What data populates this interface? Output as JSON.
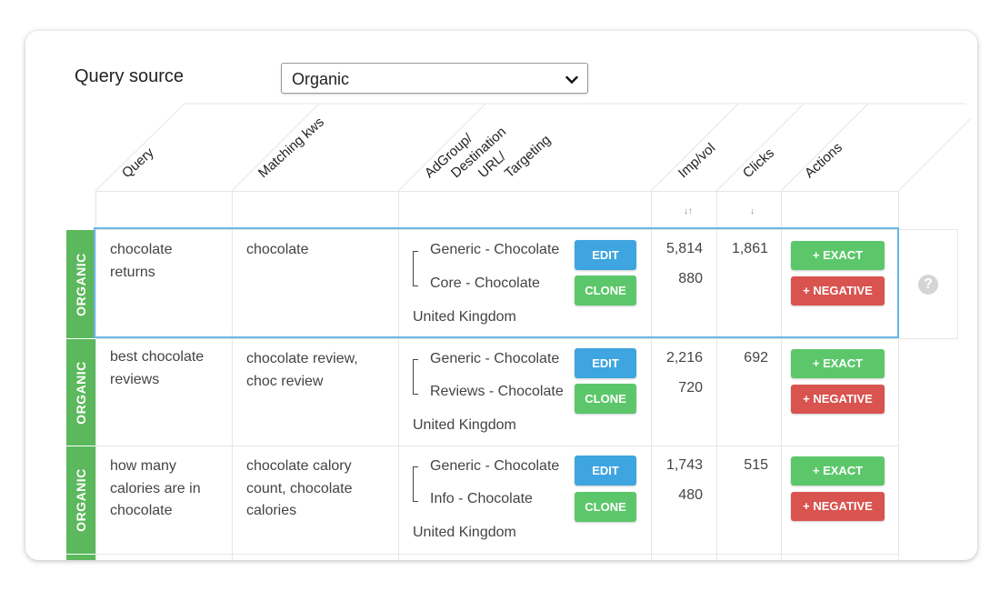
{
  "query_source": {
    "label": "Query source",
    "selected": "Organic"
  },
  "columns": {
    "query": "Query",
    "matching_kws": "Matching kws",
    "adgroup_l1": "AdGroup/",
    "adgroup_l2": "Destination",
    "adgroup_l3": "URL/",
    "adgroup_l4": "Targeting",
    "imp_vol": "Imp/vol",
    "clicks": "Clicks",
    "actions": "Actions"
  },
  "sort_icons": {
    "imp_vol": "↓↑",
    "clicks": "↓"
  },
  "buttons": {
    "edit": "EDIT",
    "clone": "CLONE",
    "exact": "+ EXACT",
    "negative": "+ NEGATIVE"
  },
  "rows": [
    {
      "source": "ORGANIC",
      "query": [
        "chocolate",
        "returns"
      ],
      "matching_kws": [
        "chocolate"
      ],
      "adgroup_generic": "Generic - Chocolate",
      "adgroup_specific": "Core - Chocolate",
      "targeting": "United Kingdom",
      "imp": "5,814",
      "vol": "880",
      "clicks": "1,861"
    },
    {
      "source": "ORGANIC",
      "query": [
        "best chocolate",
        "reviews"
      ],
      "matching_kws": [
        "chocolate review,",
        "choc review"
      ],
      "adgroup_generic": "Generic - Chocolate",
      "adgroup_specific": "Reviews - Chocolate",
      "targeting": "United Kingdom",
      "imp": "2,216",
      "vol": "720",
      "clicks": "692"
    },
    {
      "source": "ORGANIC",
      "query": [
        "how many",
        "calories are in",
        "chocolate"
      ],
      "matching_kws": [
        "chocolate calory",
        "count, chocolate",
        "calories"
      ],
      "adgroup_generic": "Generic - Chocolate",
      "adgroup_specific": "Info - Chocolate",
      "targeting": "United Kingdom",
      "imp": "1,743",
      "vol": "480",
      "clicks": "515"
    }
  ],
  "help_icon": "?",
  "colors": {
    "organic": "#5cb85c",
    "edit": "#3ea5e0",
    "clone": "#5cc76a",
    "negative": "#d9534f",
    "selection": "#6ab6e6"
  }
}
